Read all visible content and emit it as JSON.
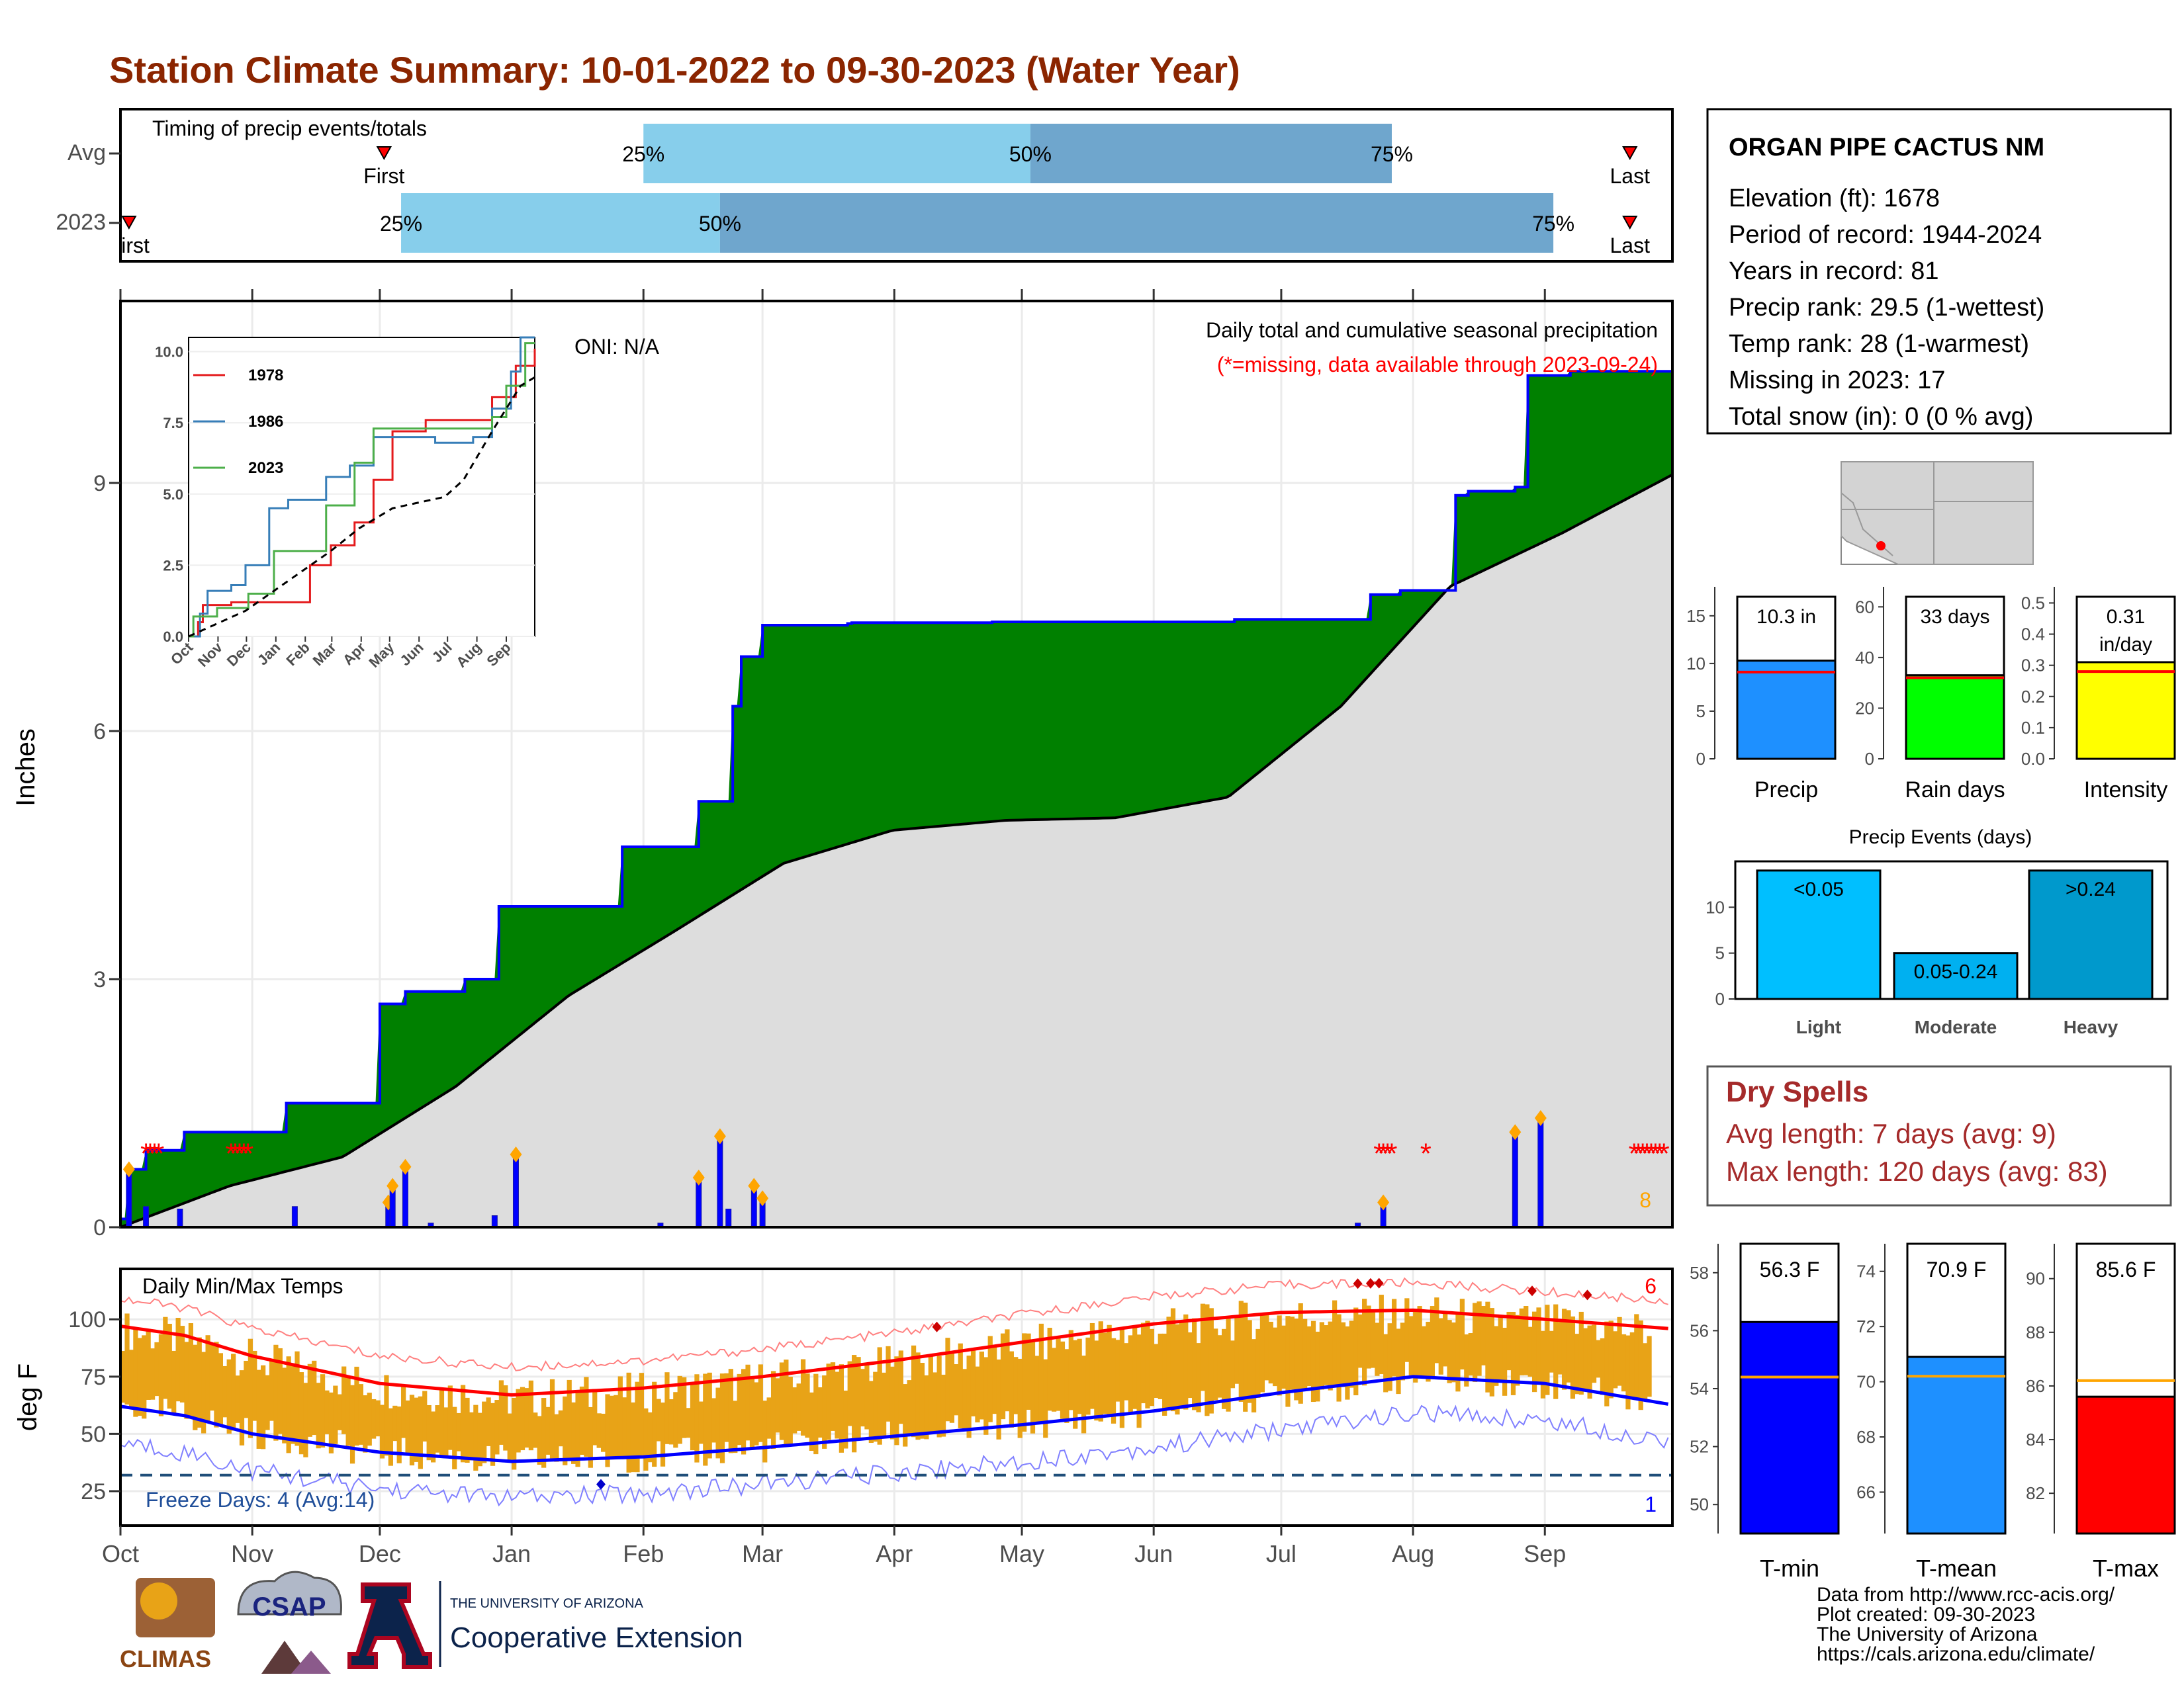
{
  "title": "Station Climate Summary: 10-01-2022 to 09-30-2023 (Water Year)",
  "colors": {
    "title": "#8B2500",
    "cum_fill": "#008000",
    "cum_line": "#0000ff",
    "avg_fill": "#dddddd",
    "q_light": "#87ceeb",
    "q_dark": "#6fa6cd",
    "bar_precip": "#1e90ff",
    "bar_rain": "#00ff00",
    "bar_int": "#ffff00",
    "light": "#00bfff",
    "moderate": "#00b0f0",
    "heavy": "#0099cc",
    "tmin": "#0000ff",
    "tmean": "#1e90ff",
    "tmax": "#ff0000",
    "temp_bar": "#e8a317",
    "dry": "#a52a2a"
  },
  "timing": {
    "label": "Timing of precip events/totals",
    "rows": [
      {
        "name": "Avg",
        "first_label": "First",
        "last_label": "Last",
        "q25": "25%",
        "q50": "50%",
        "q75": "75%",
        "first_day": 62,
        "q25_day": 123,
        "q50_day": 214,
        "q75_day": 299,
        "last_day": 355
      },
      {
        "name": "2023",
        "first_label": "First",
        "last_label": "Last",
        "q25": "25%",
        "q50": "50%",
        "q75": "75%",
        "first_day": 2,
        "q25_day": 66,
        "q50_day": 141,
        "q75_day": 337,
        "last_day": 355
      }
    ]
  },
  "precip": {
    "ylabel": "Inches",
    "oni": "ONI: N/A",
    "subtitle": "Daily total and cumulative seasonal precipitation",
    "missing_note": "(*=missing, data available through 2023-09-24)",
    "missing_count": "8"
  },
  "inset": {
    "series": [
      "1978",
      "1986",
      "2023"
    ],
    "months": [
      "Oct",
      "Nov",
      "Dec",
      "Jan",
      "Feb",
      "Mar",
      "Apr",
      "May",
      "Jun",
      "Jul",
      "Aug",
      "Sep"
    ],
    "yticks": [
      "0.0",
      "2.5",
      "5.0",
      "7.5",
      "10.0"
    ]
  },
  "temp": {
    "ylabel": "deg F",
    "label": "Daily Min/Max Temps",
    "freeze": "Freeze Days: 4 (Avg:14)",
    "record_high_count": "6",
    "record_low_count": "1"
  },
  "months": [
    "Oct",
    "Nov",
    "Dec",
    "Jan",
    "Feb",
    "Mar",
    "Apr",
    "May",
    "Jun",
    "Jul",
    "Aug",
    "Sep"
  ],
  "station": {
    "name": "ORGAN PIPE CACTUS NM",
    "lines": [
      "Elevation (ft): 1678",
      "Period of record: 1944-2024",
      "Years in record: 81",
      "Precip rank: 29.5 (1-wettest)",
      "Temp rank: 28 (1-warmest)",
      "Missing in 2023: 17",
      "Total snow (in): 0 (0 % avg)"
    ]
  },
  "summary_bars": [
    {
      "label": "Precip",
      "value_label": "10.3 in",
      "value": 10.3,
      "avg": 9.1,
      "ymax": 17,
      "ticks": [
        "0",
        "5",
        "10",
        "15"
      ]
    },
    {
      "label": "Rain days",
      "value_label": "33 days",
      "value": 33,
      "avg": 32,
      "ymax": 64,
      "ticks": [
        "0",
        "20",
        "40",
        "60"
      ]
    },
    {
      "label": "Intensity",
      "value_label": "0.31 in/day",
      "value": 0.31,
      "avg": 0.28,
      "ymax": 0.52,
      "ticks": [
        "0.0",
        "0.1",
        "0.2",
        "0.3",
        "0.4",
        "0.5"
      ]
    }
  ],
  "precip_events": {
    "title": "Precip Events (days)",
    "bars": [
      {
        "label": "Light",
        "value_label": "<0.05",
        "value": 14
      },
      {
        "label": "Moderate",
        "value_label": "0.05-0.24",
        "value": 5
      },
      {
        "label": "Heavy",
        "value_label": ">0.24",
        "value": 14
      }
    ],
    "ticks": [
      "0",
      "5",
      "10"
    ]
  },
  "dry_spells": {
    "title": "Dry Spells",
    "lines": [
      "Avg length: 7 days (avg: 9)",
      "Max length: 120 days (avg: 83)"
    ]
  },
  "temp_bars": [
    {
      "label": "T-min",
      "value_label": "56.3 F",
      "value": 56.3,
      "avg": 54.4,
      "ymin": 49,
      "ymax": 59,
      "ticks": [
        "50",
        "52",
        "54",
        "56",
        "58"
      ]
    },
    {
      "label": "T-mean",
      "value_label": "70.9 F",
      "value": 70.9,
      "avg": 70.2,
      "ymin": 64.5,
      "ymax": 75,
      "ticks": [
        "66",
        "68",
        "70",
        "72",
        "74"
      ]
    },
    {
      "label": "T-max",
      "value_label": "85.6 F",
      "value": 85.6,
      "avg": 86.2,
      "ymin": 80.5,
      "ymax": 91.3,
      "ticks": [
        "82",
        "84",
        "86",
        "88",
        "90"
      ]
    }
  ],
  "footer": [
    "Data from http://www.rcc-acis.org/",
    "Plot created: 09-30-2023",
    "The University of Arizona",
    "https://cals.arizona.edu/climate/"
  ],
  "logos": {
    "climas": "CLIMAS",
    "csap": "CSAP",
    "ua_small": "THE UNIVERSITY OF ARIZONA",
    "ua_big": "Cooperative Extension"
  },
  "chart_data": [
    {
      "type": "area",
      "title": "Daily total and cumulative seasonal precipitation",
      "ylabel": "Inches",
      "ylim": [
        0,
        11.2
      ],
      "yticks": [
        0,
        3,
        6,
        9
      ],
      "x_months": [
        "Oct",
        "Nov",
        "Dec",
        "Jan",
        "Feb",
        "Mar",
        "Apr",
        "May",
        "Jun",
        "Jul",
        "Aug",
        "Sep"
      ],
      "cumulative_2023": [
        [
          0,
          0.1
        ],
        [
          3,
          0.7
        ],
        [
          9,
          0.93
        ],
        [
          23,
          1.15
        ],
        [
          63,
          1.5
        ],
        [
          97,
          2.7
        ],
        [
          108,
          2.85
        ],
        [
          130,
          3.0
        ],
        [
          143,
          3.88
        ],
        [
          190,
          4.6
        ],
        [
          219,
          5.15
        ],
        [
          232,
          6.3
        ],
        [
          235,
          6.9
        ],
        [
          243,
          7.28
        ],
        [
          278,
          7.31
        ],
        [
          275,
          7.3
        ],
        [
          325,
          7.31
        ],
        [
          330,
          7.32
        ],
        [
          370,
          7.32
        ],
        [
          380,
          7.32
        ],
        [
          422,
          7.35
        ],
        [
          432,
          7.35
        ],
        [
          475,
          7.65
        ],
        [
          486,
          7.7
        ],
        [
          498,
          7.7
        ],
        [
          506,
          8.85
        ],
        [
          512,
          8.9
        ],
        [
          530,
          8.95
        ],
        [
          534,
          10.3
        ],
        [
          551,
          10.35
        ],
        [
          590,
          10.35
        ]
      ],
      "cumulative_avg": [
        [
          0,
          0
        ],
        [
          30,
          0.5
        ],
        [
          61,
          0.85
        ],
        [
          92,
          1.7
        ],
        [
          123,
          2.8
        ],
        [
          151,
          3.55
        ],
        [
          182,
          4.4
        ],
        [
          212,
          4.8
        ],
        [
          243,
          4.92
        ],
        [
          273,
          4.95
        ],
        [
          304,
          5.2
        ],
        [
          335,
          6.3
        ],
        [
          365,
          7.75
        ],
        [
          396,
          8.4
        ],
        [
          426,
          9.1
        ]
      ],
      "daily": [
        [
          2,
          0.7
        ],
        [
          3,
          0.25
        ],
        [
          7,
          0.22
        ],
        [
          16,
          0.25
        ],
        [
          41,
          0.3
        ],
        [
          64,
          0.5
        ],
        [
          65,
          0.73
        ],
        [
          74,
          0.05
        ],
        [
          89,
          0.14
        ],
        [
          94,
          0.88
        ],
        [
          126,
          0.05
        ],
        [
          135,
          0.6
        ],
        [
          144,
          1.1
        ],
        [
          146,
          0.22
        ],
        [
          150,
          0.5
        ],
        [
          152,
          0.35
        ],
        [
          326,
          0.05
        ],
        [
          327,
          0.3
        ],
        [
          357,
          1.15
        ],
        [
          361,
          1.32
        ]
      ],
      "missing_days": [
        6,
        7,
        8,
        9,
        26,
        27,
        28,
        29,
        30,
        296,
        297,
        298,
        299,
        307,
        356,
        357,
        358,
        359,
        360,
        361,
        362,
        363
      ]
    },
    {
      "type": "line",
      "title": "Daily Min/Max Temps",
      "ylabel": "deg F",
      "ylim": [
        10,
        122
      ],
      "yticks": [
        25,
        50,
        75,
        100
      ],
      "freeze_line": 32,
      "avg_max": [
        [
          0,
          97
        ],
        [
          15,
          93
        ],
        [
          31,
          84
        ],
        [
          61,
          72
        ],
        [
          92,
          67
        ],
        [
          123,
          70
        ],
        [
          151,
          75
        ],
        [
          182,
          82
        ],
        [
          212,
          90
        ],
        [
          243,
          98
        ],
        [
          273,
          103
        ],
        [
          304,
          104
        ],
        [
          335,
          100
        ],
        [
          364,
          96
        ]
      ],
      "avg_min": [
        [
          0,
          62
        ],
        [
          15,
          58
        ],
        [
          31,
          50
        ],
        [
          61,
          42
        ],
        [
          92,
          38
        ],
        [
          123,
          40
        ],
        [
          151,
          44
        ],
        [
          182,
          49
        ],
        [
          212,
          54
        ],
        [
          243,
          60
        ],
        [
          273,
          68
        ],
        [
          304,
          75
        ],
        [
          335,
          72
        ],
        [
          364,
          63
        ]
      ]
    }
  ]
}
